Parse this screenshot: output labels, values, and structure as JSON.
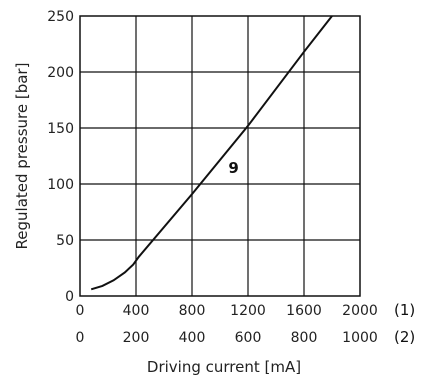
{
  "chart_data": {
    "type": "line",
    "xlabel": "Driving current [mA]",
    "ylabel": "Regulated pressure [bar]",
    "x_axis_1": {
      "id_label": "(1)",
      "ticks": [
        0,
        400,
        800,
        1200,
        1600,
        2000
      ],
      "tick_labels": [
        "0",
        "400",
        "800",
        "1200",
        "1600",
        "2000"
      ],
      "range": [
        0,
        2000
      ]
    },
    "x_axis_2": {
      "id_label": "(2)",
      "ticks": [
        0,
        200,
        400,
        600,
        800,
        1000
      ],
      "tick_labels": [
        "0",
        "200",
        "400",
        "600",
        "800",
        "1000"
      ],
      "range": [
        0,
        1000
      ]
    },
    "y_axis": {
      "ticks": [
        0,
        50,
        100,
        150,
        200,
        250
      ],
      "tick_labels": [
        "0",
        "50",
        "100",
        "150",
        "200",
        "250"
      ],
      "range": [
        0,
        250
      ]
    },
    "grid": true,
    "series": [
      {
        "label": "9",
        "x": [
          80,
          160,
          240,
          320,
          380,
          420,
          800,
          1200,
          1600,
          1800
        ],
        "y": [
          6,
          9,
          14,
          21,
          28,
          35,
          91,
          152,
          218,
          250
        ]
      }
    ]
  }
}
